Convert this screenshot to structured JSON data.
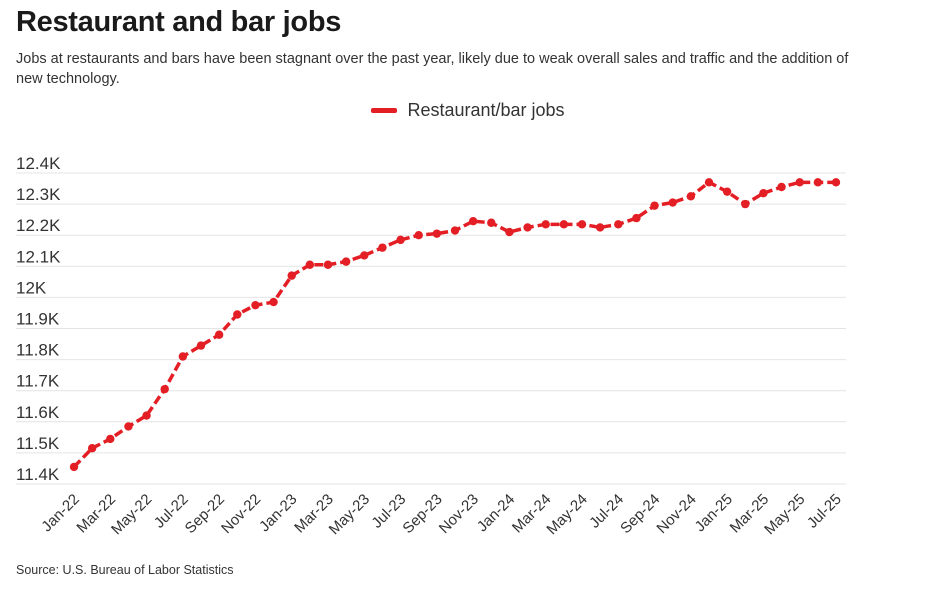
{
  "header": {
    "title": "Restaurant and bar jobs",
    "subtitle": "Jobs at restaurants and bars have been stagnant over the past year, likely due to weak overall sales and traffic and the addition of new technology."
  },
  "footer": {
    "source": "Source: U.S. Bureau of Labor Statistics"
  },
  "chart_data": {
    "type": "line",
    "title": "Restaurant and bar jobs",
    "xlabel": "",
    "ylabel": "",
    "ylim": [
      11.4,
      12.4
    ],
    "grid": true,
    "legend_position": "top-center",
    "y_ticks": [
      11.4,
      11.5,
      11.6,
      11.7,
      11.8,
      11.9,
      12.0,
      12.1,
      12.2,
      12.3,
      12.4
    ],
    "y_tick_labels": [
      "11.4K",
      "11.5K",
      "11.6K",
      "11.7K",
      "11.8K",
      "11.9K",
      "12K",
      "12.1K",
      "12.2K",
      "12.3K",
      "12.4K"
    ],
    "x_tick_labels": [
      "Jan-22",
      "Mar-22",
      "May-22",
      "Jul-22",
      "Sep-22",
      "Nov-22",
      "Jan-23",
      "Mar-23",
      "May-23",
      "Jul-23",
      "Sep-23",
      "Nov-23",
      "Jan-24",
      "Mar-24",
      "May-24",
      "Jul-24",
      "Sep-24",
      "Nov-24",
      "Jan-25",
      "Mar-25",
      "May-25",
      "Jul-25"
    ],
    "x": [
      "Jan-22",
      "Feb-22",
      "Mar-22",
      "Apr-22",
      "May-22",
      "Jun-22",
      "Jul-22",
      "Aug-22",
      "Sep-22",
      "Oct-22",
      "Nov-22",
      "Dec-22",
      "Jan-23",
      "Feb-23",
      "Mar-23",
      "Apr-23",
      "May-23",
      "Jun-23",
      "Jul-23",
      "Aug-23",
      "Sep-23",
      "Oct-23",
      "Nov-23",
      "Dec-23",
      "Jan-24",
      "Feb-24",
      "Mar-24",
      "Apr-24",
      "May-24",
      "Jun-24",
      "Jul-24",
      "Aug-24",
      "Sep-24",
      "Oct-24",
      "Nov-24",
      "Dec-24",
      "Jan-25",
      "Feb-25",
      "Mar-25",
      "Apr-25",
      "May-25",
      "Jun-25",
      "Jul-25"
    ],
    "series": [
      {
        "name": "Restaurant/bar jobs",
        "color": "#e31e24",
        "values": [
          11.455,
          11.515,
          11.545,
          11.585,
          11.62,
          11.705,
          11.81,
          11.845,
          11.88,
          11.945,
          11.975,
          11.985,
          12.07,
          12.105,
          12.105,
          12.115,
          12.135,
          12.16,
          12.185,
          12.2,
          12.205,
          12.215,
          12.245,
          12.24,
          12.21,
          12.225,
          12.235,
          12.235,
          12.235,
          12.225,
          12.235,
          12.255,
          12.295,
          12.305,
          12.325,
          12.37,
          12.34,
          12.3,
          12.335,
          12.355,
          12.37,
          12.37,
          12.37
        ]
      }
    ]
  }
}
